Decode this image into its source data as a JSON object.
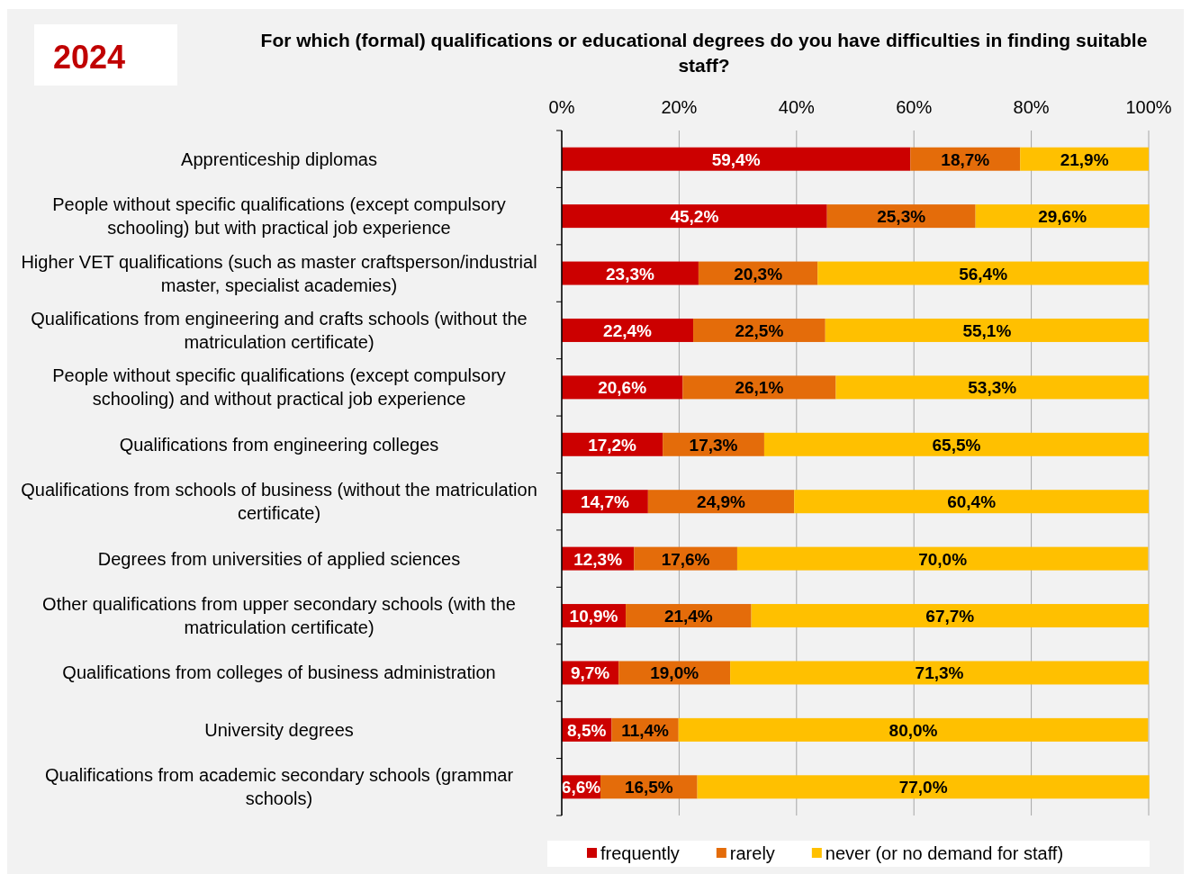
{
  "chart_data": {
    "type": "bar",
    "orientation": "horizontal",
    "stacked": true,
    "title": "For which (formal) qualifications or educational degrees do you have difficulties in finding suitable staff?",
    "subtitle": "2024",
    "categories": [
      "Apprenticeship diplomas",
      "People without specific qualifications (except compulsory schooling) but with practical job experience",
      "Higher VET qualifications (such as master craftsperson/industrial master, specialist academies)",
      "Qualifications from engineering and crafts schools (without the matriculation certificate)",
      "People without specific qualifications (except compulsory schooling) and without practical job experience",
      "Qualifications from engineering colleges",
      "Qualifications from schools of business (without the matriculation certificate)",
      "Degrees from universities of applied sciences",
      "Other qualifications from upper secondary schools (with the matriculation certificate)",
      "Qualifications from colleges of business administration",
      "University degrees",
      "Qualifications from academic secondary schools (grammar schools)"
    ],
    "series": [
      {
        "name": "frequently",
        "color": "#cc0000",
        "values": [
          59.4,
          45.2,
          23.3,
          22.4,
          20.6,
          17.2,
          14.7,
          12.3,
          10.9,
          9.7,
          8.5,
          6.6
        ],
        "value_labels": [
          "59,4%",
          "45,2%",
          "23,3%",
          "22,4%",
          "20,6%",
          "17,2%",
          "14,7%",
          "12,3%",
          "10,9%",
          "9,7%",
          "8,5%",
          "6,6%"
        ]
      },
      {
        "name": "rarely",
        "color": "#e46c0a",
        "values": [
          18.7,
          25.3,
          20.3,
          22.5,
          26.1,
          17.3,
          24.9,
          17.6,
          21.4,
          19.0,
          11.4,
          16.5
        ],
        "value_labels": [
          "18,7%",
          "25,3%",
          "20,3%",
          "22,5%",
          "26,1%",
          "17,3%",
          "24,9%",
          "17,6%",
          "21,4%",
          "19,0%",
          "11,4%",
          "16,5%"
        ]
      },
      {
        "name": "never (or no demand for staff)",
        "color": "#ffc000",
        "values": [
          21.9,
          29.6,
          56.4,
          55.1,
          53.3,
          65.5,
          60.4,
          70.0,
          67.7,
          71.3,
          80.0,
          77.0
        ],
        "value_labels": [
          "21,9%",
          "29,6%",
          "56,4%",
          "55,1%",
          "53,3%",
          "65,5%",
          "60,4%",
          "70,0%",
          "67,7%",
          "71,3%",
          "80,0%",
          "77,0%"
        ]
      }
    ],
    "xlim": [
      0,
      100
    ],
    "xticks": [
      {
        "value": 0,
        "label": "0%"
      },
      {
        "value": 20,
        "label": "20%"
      },
      {
        "value": 40,
        "label": "40%"
      },
      {
        "value": 60,
        "label": "60%"
      },
      {
        "value": 80,
        "label": "80%"
      },
      {
        "value": 100,
        "label": "100%"
      }
    ],
    "grid": "x",
    "legend": "bottom"
  }
}
